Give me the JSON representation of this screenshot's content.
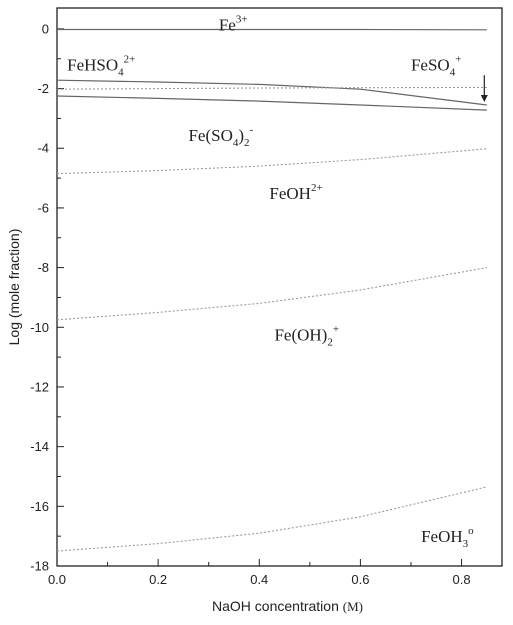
{
  "chart_data": {
    "type": "line",
    "xlabel": "NaOH concentration",
    "xunit": "(M)",
    "ylabel": "Log (mole fraction)",
    "xlim": [
      0.0,
      0.88
    ],
    "ylim": [
      -18,
      0.7
    ],
    "x_ticks": [
      "0.0",
      "0.2",
      "0.4",
      "0.6",
      "0.8"
    ],
    "y_ticks": [
      "0",
      "-2",
      "-4",
      "-6",
      "-8",
      "-10",
      "-12",
      "-14",
      "-16",
      "-18"
    ],
    "grid": false,
    "series": [
      {
        "style": "solid",
        "x": [
          0.0,
          0.2,
          0.4,
          0.6,
          0.85
        ],
        "y": [
          -0.02,
          -0.02,
          -0.02,
          -0.02,
          -0.03
        ]
      },
      {
        "style": "solid",
        "x": [
          0.0,
          0.2,
          0.4,
          0.6,
          0.85
        ],
        "y": [
          -1.72,
          -1.78,
          -1.86,
          -2.02,
          -2.55
        ]
      },
      {
        "style": "solid",
        "x": [
          0.0,
          0.2,
          0.4,
          0.6,
          0.85
        ],
        "y": [
          -2.25,
          -2.33,
          -2.42,
          -2.55,
          -2.72
        ]
      },
      {
        "style": "dotted",
        "x": [
          0.0,
          0.2,
          0.4,
          0.6,
          0.85
        ],
        "y": [
          -2.02,
          -2.0,
          -1.98,
          -1.97,
          -1.96
        ]
      },
      {
        "style": "dotted",
        "x": [
          0.0,
          0.2,
          0.4,
          0.6,
          0.85
        ],
        "y": [
          -4.85,
          -4.75,
          -4.6,
          -4.38,
          -4.02
        ]
      },
      {
        "style": "dotted",
        "x": [
          0.0,
          0.2,
          0.4,
          0.6,
          0.85
        ],
        "y": [
          -9.75,
          -9.5,
          -9.2,
          -8.75,
          -8.0
        ]
      },
      {
        "style": "dotted",
        "x": [
          0.0,
          0.2,
          0.4,
          0.6,
          0.85
        ],
        "y": [
          -17.5,
          -17.25,
          -16.9,
          -16.35,
          -15.35
        ]
      }
    ],
    "annotations": [
      {
        "base": "Fe",
        "sub": "",
        "sup": "3+",
        "x": 0.32,
        "y": -0.05
      },
      {
        "base": "FeHSO",
        "sub": "4",
        "sup": "2+",
        "x": 0.02,
        "y": -1.4
      },
      {
        "base": "FeSO",
        "sub": "4",
        "sup": "+",
        "x": 0.7,
        "y": -1.4
      },
      {
        "base": "Fe(SO",
        "sub": "4",
        "sup": "",
        "tail": ")",
        "sub2": "2",
        "sup2": "-",
        "x": 0.26,
        "y": -3.75
      },
      {
        "base": "FeOH",
        "sub": "",
        "sup": "2+",
        "x": 0.42,
        "y": -5.7
      },
      {
        "base": "Fe(OH)",
        "sub": "2",
        "sup": "+",
        "x": 0.43,
        "y": -10.45
      },
      {
        "base": "FeOH",
        "sub": "3",
        "sup": "o",
        "x": 0.72,
        "y": -17.2
      }
    ],
    "arrow": {
      "x": 0.845,
      "y_from": -1.55,
      "y_to": -2.45
    }
  }
}
